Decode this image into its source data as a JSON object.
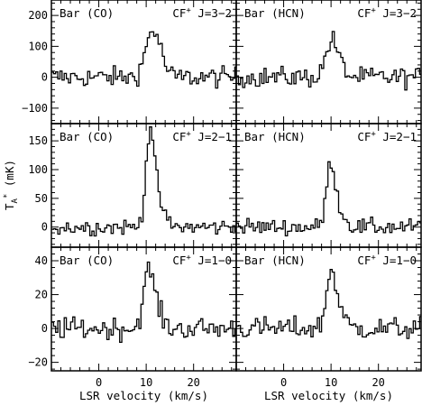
{
  "chart_data": {
    "type": "line",
    "layout": "3x2 grid of step spectra",
    "xlabel": "LSR velocity (km/s)",
    "ylabel_main": "T",
    "ylabel_sub": "A",
    "ylabel_sup": "*",
    "ylabel_unit": "(mK)",
    "xlim": [
      -10,
      29
    ],
    "xticks": [
      0,
      10,
      20
    ],
    "columns": [
      "Bar (CO)",
      "Bar (HCN)"
    ],
    "rows": [
      {
        "line": "J=3−2",
        "ylim": [
          -150,
          250
        ],
        "yticks": [
          -100,
          0,
          100,
          200
        ],
        "peak": {
          "CO": {
            "center": 11,
            "amp": 140,
            "width": 1.4
          },
          "HCN": {
            "center": 9.8,
            "amp": 110,
            "width": 1.2
          }
        },
        "noise": 30
      },
      {
        "line": "J=2−1",
        "ylim": [
          -35,
          180
        ],
        "yticks": [
          0,
          50,
          100,
          150
        ],
        "peak": {
          "CO": {
            "center": 10.6,
            "amp": 160,
            "width": 0.9
          },
          "HCN": {
            "center": 9.7,
            "amp": 105,
            "width": 0.9
          }
        },
        "noise": 13
      },
      {
        "line": "J=1−0",
        "ylim": [
          -25,
          48
        ],
        "yticks": [
          -20,
          0,
          20,
          40
        ],
        "peak": {
          "CO": {
            "center": 10.3,
            "amp": 32,
            "width": 1.1
          },
          "HCN": {
            "center": 9.8,
            "amp": 32,
            "width": 1.0
          }
        },
        "noise": 6
      }
    ],
    "species_label": "CF",
    "species_sup": "+",
    "tick_labels": {
      "row0": [
        "200",
        "100",
        "0",
        "−100"
      ],
      "row1": [
        "150",
        "100",
        "50",
        "0"
      ],
      "row2": [
        "40",
        "20",
        "0",
        "−20"
      ],
      "x": [
        "0",
        "10",
        "20"
      ]
    }
  }
}
